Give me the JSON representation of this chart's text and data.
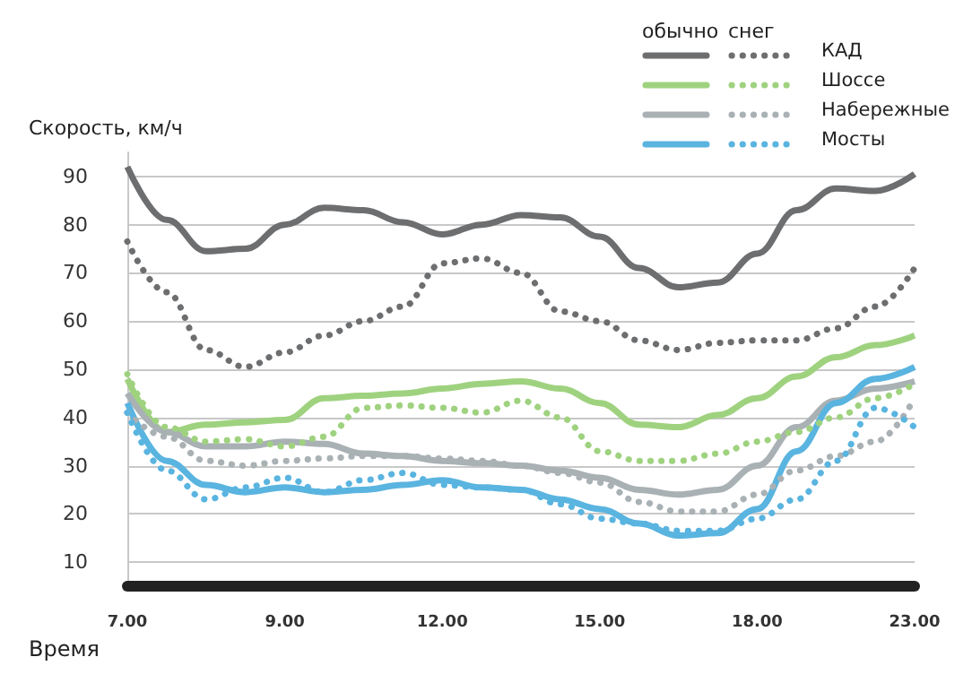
{
  "chart_data": {
    "type": "line",
    "ylabel": "Скорость, км/ч",
    "xlabel": "Время",
    "categories": [
      "7.00",
      null,
      null,
      null,
      "9.00",
      null,
      null,
      null,
      "12.00",
      null,
      null,
      null,
      "15.00",
      null,
      null,
      null,
      "18.00",
      null,
      null,
      null,
      "23.00"
    ],
    "ylim": [
      5,
      95
    ],
    "yticks": [
      10,
      20,
      30,
      40,
      50,
      60,
      70,
      80,
      90
    ],
    "grid": "y",
    "legend": "top right",
    "marker": "none",
    "annotations": [
      "обычно",
      "снег"
    ],
    "series": [
      {
        "color": "#6d6e70",
        "line_style": "solid",
        "values": [
          92,
          81,
          74.5,
          75,
          80,
          83.5,
          83,
          80.5,
          78,
          80,
          82,
          81.5,
          77.5,
          71,
          67,
          68,
          74,
          83,
          87.5,
          87,
          90.5
        ]
      },
      {
        "name": "КАД",
        "color": "#6d6e70",
        "line_style": "dotted",
        "values": [
          76.5,
          66,
          54,
          50.5,
          53.5,
          57,
          60,
          63,
          72,
          73,
          70,
          62,
          60,
          56,
          54,
          55.5,
          56,
          56,
          58.5,
          63,
          71
        ]
      },
      {
        "color": "#9fd27f",
        "line_style": "solid",
        "values": [
          48,
          37,
          38.5,
          39,
          39.5,
          44,
          44.5,
          45,
          46,
          47,
          47.5,
          46,
          43,
          38.5,
          38,
          40.5,
          44,
          48.5,
          52.5,
          55,
          57
        ]
      },
      {
        "name": "Шоссе",
        "color": "#9fd27f",
        "line_style": "dotted",
        "values": [
          49,
          38,
          35,
          35.5,
          34,
          36,
          42,
          42.5,
          42,
          41,
          43.5,
          40,
          33,
          31,
          31,
          32.5,
          35,
          37,
          40,
          44,
          47
        ]
      },
      {
        "color": "#a9b1b4",
        "line_style": "solid",
        "values": [
          45,
          37,
          34,
          34,
          35,
          34.5,
          32.5,
          32,
          31,
          30.5,
          30,
          29,
          27.5,
          25,
          24,
          25,
          30,
          38,
          43.5,
          46,
          47.5
        ]
      },
      {
        "name": "Набережные",
        "color": "#a9b1b4",
        "line_style": "dotted",
        "values": [
          41,
          36,
          31,
          30,
          31,
          31.5,
          32,
          32,
          31.5,
          31,
          30,
          28.5,
          26.5,
          22.5,
          20.5,
          20.5,
          24,
          29,
          32,
          35,
          44
        ]
      },
      {
        "color": "#5ab4e0",
        "line_style": "solid",
        "values": [
          43,
          31,
          26,
          24.5,
          25.5,
          24.5,
          25,
          26,
          27,
          25.5,
          25,
          23,
          21,
          18,
          15.5,
          16,
          21,
          33,
          43,
          48,
          50.5
        ]
      },
      {
        "name": "Мосты",
        "color": "#5ab4e0",
        "line_style": "dotted",
        "values": [
          41,
          29,
          23,
          25.5,
          27.5,
          24.5,
          27,
          28.5,
          26,
          25.5,
          25,
          22,
          19,
          18,
          16.5,
          16.5,
          19,
          23,
          31,
          42,
          38
        ]
      }
    ]
  }
}
